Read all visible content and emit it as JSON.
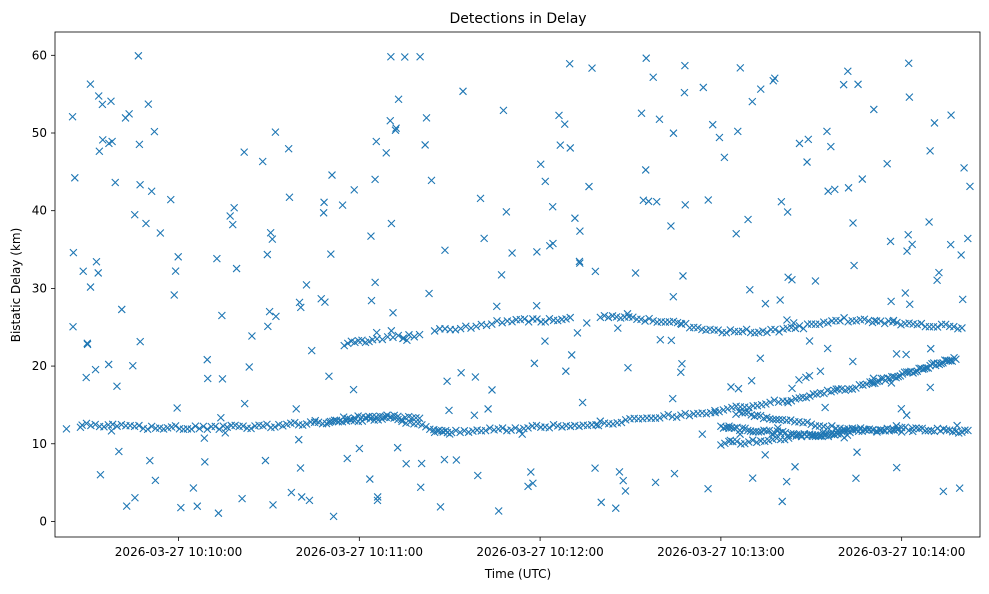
{
  "chart_data": {
    "type": "scatter",
    "title": "Detections in Delay",
    "xlabel": "Time (UTC)",
    "ylabel": "Bistatic Delay (km)",
    "marker": "x",
    "color": "#1f77b4",
    "grid": false,
    "xlim": [
      "2026-03-27 10:09:19",
      "2026-03-27 10:14:26"
    ],
    "ylim": [
      -2.0,
      63.0
    ],
    "xticks": [
      "2026-03-27 10:10:00",
      "2026-03-27 10:11:00",
      "2026-03-27 10:12:00",
      "2026-03-27 10:13:00",
      "2026-03-27 10:14:00"
    ],
    "yticks": [
      0,
      10,
      20,
      30,
      40,
      50,
      60
    ],
    "tracks": [
      {
        "x": [
          "2026-03-27 10:09:28",
          "2026-03-27 10:09:50",
          "2026-03-27 10:10:10",
          "2026-03-27 10:10:30",
          "2026-03-27 10:10:50",
          "2026-03-27 10:11:10",
          "2026-03-27 10:11:30"
        ],
        "y": [
          12.4,
          12.1,
          12.0,
          12.3,
          12.8,
          13.3,
          11.5
        ],
        "n": 92
      },
      {
        "x": [
          "2026-03-27 10:10:50",
          "2026-03-27 10:11:05",
          "2026-03-27 10:11:20"
        ],
        "y": [
          13.0,
          13.6,
          13.2
        ],
        "n": 26
      },
      {
        "x": [
          "2026-03-27 10:11:25",
          "2026-03-27 10:11:55",
          "2026-03-27 10:12:25",
          "2026-03-27 10:12:55",
          "2026-03-27 10:13:25",
          "2026-03-27 10:13:50",
          "2026-03-27 10:14:05",
          "2026-03-27 10:14:18"
        ],
        "y": [
          11.5,
          12.0,
          12.8,
          14.0,
          15.8,
          17.8,
          19.5,
          21.0
        ],
        "n": 150
      },
      {
        "x": [
          "2026-03-27 10:11:25",
          "2026-03-27 10:11:50",
          "2026-03-27 10:12:10"
        ],
        "y": [
          24.5,
          25.8,
          26.0
        ],
        "n": 30
      },
      {
        "x": [
          "2026-03-27 10:10:55",
          "2026-03-27 10:11:05",
          "2026-03-27 10:11:20"
        ],
        "y": [
          22.8,
          23.5,
          24.0
        ],
        "n": 18
      },
      {
        "x": [
          "2026-03-27 10:12:20",
          "2026-03-27 10:12:40",
          "2026-03-27 10:13:00",
          "2026-03-27 10:13:20",
          "2026-03-27 10:13:40",
          "2026-03-27 10:14:00",
          "2026-03-27 10:14:20"
        ],
        "y": [
          26.5,
          25.8,
          24.5,
          24.5,
          26.0,
          25.5,
          25.0
        ],
        "n": 90
      },
      {
        "x": [
          "2026-03-27 10:13:00",
          "2026-03-27 10:13:15",
          "2026-03-27 10:13:30",
          "2026-03-27 10:13:45",
          "2026-03-27 10:14:05",
          "2026-03-27 10:14:22"
        ],
        "y": [
          12.2,
          11.5,
          11.0,
          11.8,
          12.0,
          11.5
        ],
        "n": 85
      },
      {
        "x": [
          "2026-03-27 10:13:00",
          "2026-03-27 10:13:15",
          "2026-03-27 10:13:30",
          "2026-03-27 10:13:42"
        ],
        "y": [
          10.0,
          10.4,
          11.2,
          11.0
        ],
        "n": 35
      },
      {
        "x": [
          "2026-03-27 10:13:05",
          "2026-03-27 10:13:20",
          "2026-03-27 10:13:40",
          "2026-03-27 10:14:00"
        ],
        "y": [
          14.0,
          13.2,
          12.0,
          11.5
        ],
        "n": 45
      }
    ],
    "clutter": {
      "n": 330,
      "xrange": [
        "2026-03-27 10:09:22",
        "2026-03-27 10:14:23"
      ],
      "yrange": [
        0.5,
        60.0
      ]
    }
  }
}
